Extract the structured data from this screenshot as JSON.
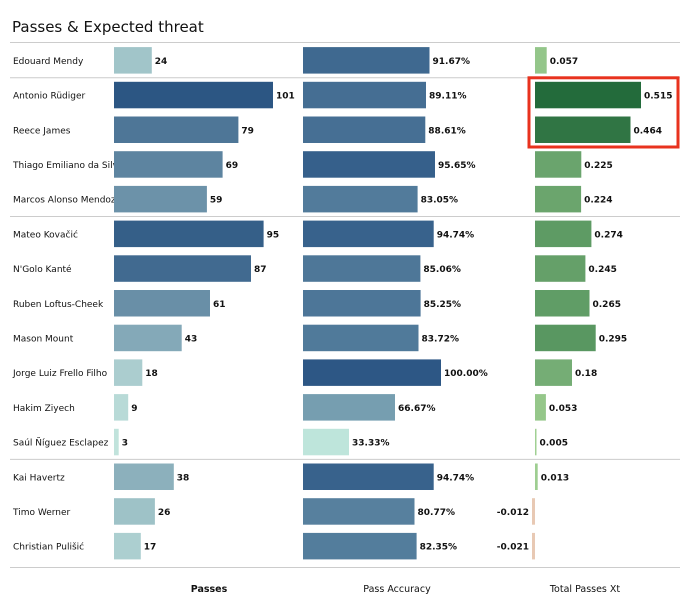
{
  "chart_data": {
    "type": "bar",
    "title": "Passes & Expected threat",
    "layout": "three horizontal bar panels sharing player rows",
    "players": [
      "Edouard Mendy",
      "Antonio Rüdiger",
      "Reece James",
      "Thiago Emiliano da Silva",
      "Marcos  Alonso Mendoza",
      "Mateo Kovačić",
      "N'Golo Kanté",
      "Ruben Loftus-Cheek",
      "Mason Mount",
      "Jorge Luiz Frello Filho",
      "Hakim Ziyech",
      "Saúl Ñíguez Esclapez",
      "Kai Havertz",
      "Timo Werner",
      "Christian Pulišić"
    ],
    "group_dividers_after": [
      0,
      4,
      11
    ],
    "series": [
      {
        "name": "Passes",
        "values": [
          24,
          101,
          79,
          69,
          59,
          95,
          87,
          61,
          43,
          18,
          9,
          3,
          38,
          26,
          17
        ],
        "labels": [
          "24",
          "101",
          "79",
          "69",
          "59",
          "95",
          "87",
          "61",
          "43",
          "18",
          "9",
          "3",
          "38",
          "26",
          "17"
        ],
        "range": [
          0,
          101
        ],
        "bold_heading": true
      },
      {
        "name": "Pass Accuracy",
        "values": [
          91.67,
          89.11,
          88.61,
          95.65,
          83.05,
          94.74,
          85.06,
          85.25,
          83.72,
          100.0,
          66.67,
          33.33,
          94.74,
          80.77,
          82.35
        ],
        "labels": [
          "91.67%",
          "89.11%",
          "88.61%",
          "95.65%",
          "83.05%",
          "94.74%",
          "85.06%",
          "85.25%",
          "83.72%",
          "100.00%",
          "66.67%",
          "33.33%",
          "94.74%",
          "80.77%",
          "82.35%"
        ],
        "range": [
          0,
          100
        ],
        "bold_heading": false
      },
      {
        "name": "Total Passes Xt",
        "values": [
          0.057,
          0.515,
          0.464,
          0.225,
          0.224,
          0.274,
          0.245,
          0.265,
          0.295,
          0.18,
          0.053,
          0.005,
          0.013,
          -0.012,
          -0.021
        ],
        "labels": [
          "0.057",
          "0.515",
          "0.464",
          "0.225",
          "0.224",
          "0.274",
          "0.245",
          "0.265",
          "0.295",
          "0.18",
          "0.053",
          "0.005",
          "0.013",
          "-0.012",
          "-0.021"
        ],
        "range": [
          0,
          0.515
        ],
        "bold_heading": false
      }
    ],
    "highlight": {
      "series": "Total Passes Xt",
      "players": [
        "Antonio Rüdiger",
        "Reece James"
      ],
      "color": "#e8321e"
    },
    "colors": {
      "passes_light": "#c6e7df",
      "passes_dark": "#2c5683",
      "accuracy_light": "#bfe6db",
      "accuracy_dark": "#2d5785",
      "xt_light": "#b8e3a3",
      "xt_dark": "#236b3b",
      "xt_negative": "#e8c9b4",
      "divider": "#cccccc"
    }
  }
}
